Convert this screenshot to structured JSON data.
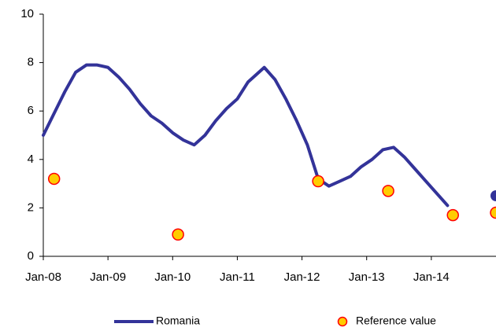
{
  "chart_data": {
    "type": "line",
    "xlim": [
      "2008-01",
      "2015-01"
    ],
    "xticks": [
      {
        "value": "2008-01",
        "label": "Jan-08"
      },
      {
        "value": "2009-01",
        "label": "Jan-09"
      },
      {
        "value": "2010-01",
        "label": "Jan-10"
      },
      {
        "value": "2011-01",
        "label": "Jan-11"
      },
      {
        "value": "2012-01",
        "label": "Jan-12"
      },
      {
        "value": "2013-01",
        "label": "Jan-13"
      },
      {
        "value": "2014-01",
        "label": "Jan-14"
      }
    ],
    "ylim": [
      0,
      10
    ],
    "yticks": [
      0,
      2,
      4,
      6,
      8,
      10
    ],
    "series": [
      {
        "name": "Romania",
        "type": "line",
        "color": "#333399",
        "x": [
          "2008-01",
          "2008-03",
          "2008-05",
          "2008-07",
          "2008-09",
          "2008-11",
          "2009-01",
          "2009-03",
          "2009-05",
          "2009-07",
          "2009-09",
          "2009-11",
          "2010-01",
          "2010-03",
          "2010-05",
          "2010-07",
          "2010-09",
          "2010-11",
          "2011-01",
          "2011-03",
          "2011-06",
          "2011-08",
          "2011-10",
          "2011-12",
          "2012-02",
          "2012-04",
          "2012-06",
          "2012-08",
          "2012-10",
          "2012-12",
          "2013-02",
          "2013-04",
          "2013-06",
          "2013-08",
          "2013-10",
          "2013-12",
          "2014-02",
          "2014-04",
          "2014-06",
          "2015-01"
        ],
        "values": [
          5.0,
          5.9,
          6.8,
          7.6,
          7.9,
          7.9,
          7.8,
          7.4,
          6.9,
          6.3,
          5.8,
          5.5,
          5.1,
          4.8,
          4.6,
          5.0,
          5.6,
          6.1,
          6.5,
          7.2,
          7.8,
          7.3,
          6.5,
          5.6,
          4.6,
          3.2,
          2.9,
          3.1,
          3.3,
          3.7,
          4.0,
          4.4,
          4.5,
          4.1,
          3.6,
          3.1,
          2.6,
          2.1,
          null,
          2.5
        ]
      },
      {
        "name": "Reference value",
        "type": "scatter",
        "color": "#ffcc00",
        "edge": "#ff0000",
        "x": [
          "2008-03",
          "2010-02",
          "2012-04",
          "2013-05",
          "2014-05",
          "2015-01"
        ],
        "values": [
          3.2,
          0.9,
          3.1,
          2.7,
          1.7,
          1.8
        ]
      }
    ]
  }
}
